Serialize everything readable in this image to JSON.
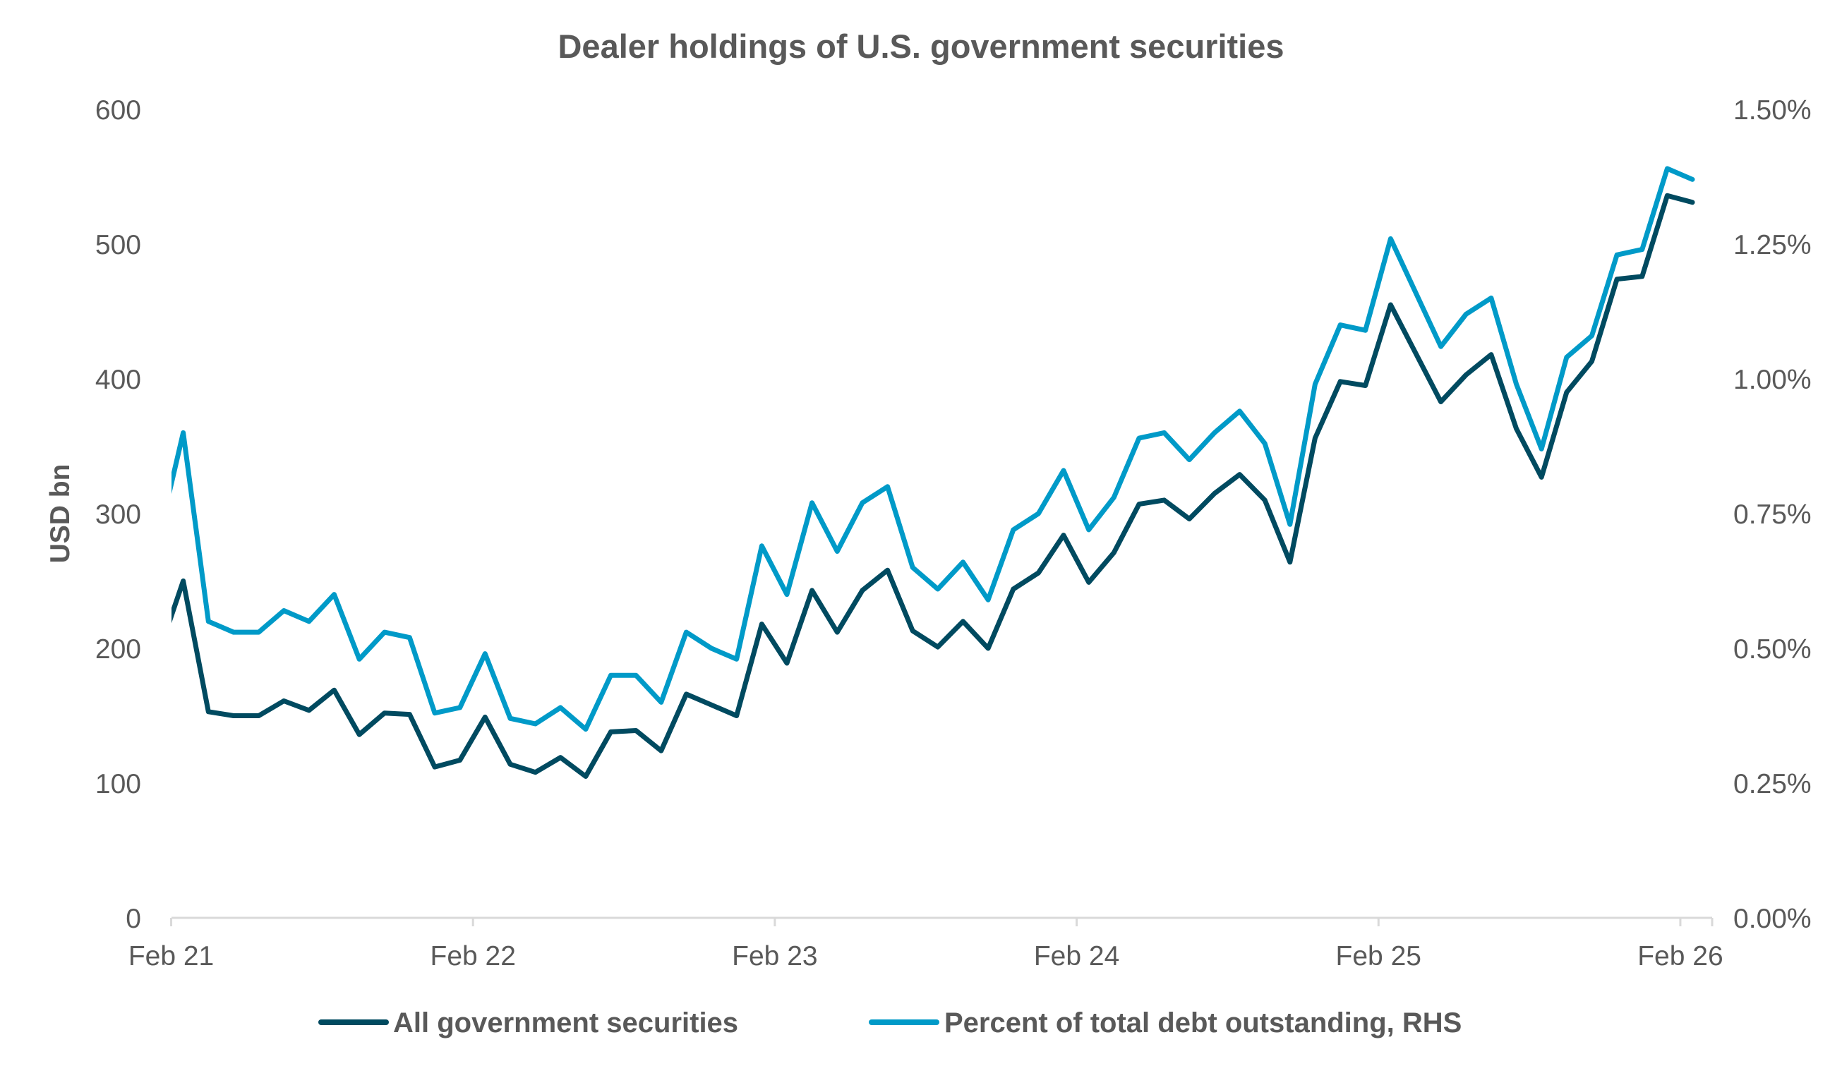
{
  "chart_data": {
    "type": "line",
    "title": "Dealer holdings of U.S. government securities",
    "ylabel": "USD bn",
    "ylim": [
      0,
      600
    ],
    "yticks": [
      "0",
      "100",
      "200",
      "300",
      "400",
      "500",
      "600"
    ],
    "y2lim": [
      0,
      1.5
    ],
    "y2ticks": [
      "0.00%",
      "0.25%",
      "0.50%",
      "0.75%",
      "1.00%",
      "1.25%",
      "1.50%"
    ],
    "xticks": [
      "Feb 21",
      "Feb 22",
      "Feb 23",
      "Feb 24",
      "Feb 25",
      "Feb 26"
    ],
    "x_unit": "monthly observations",
    "grid": false,
    "legend_position": "bottom",
    "colors": {
      "text": "#595959",
      "axis": "#d9d9d9"
    },
    "series": [
      {
        "name": "All government securities",
        "axis": "left",
        "color": "#004a60",
        "values": [
          195,
          250,
          153,
          150,
          150,
          161,
          154,
          169,
          136,
          152,
          151,
          112,
          117,
          149,
          114,
          108,
          119,
          105,
          138,
          139,
          124,
          166,
          158,
          150,
          218,
          189,
          243,
          212,
          243,
          258,
          213,
          201,
          220,
          200,
          244,
          256,
          284,
          249,
          271,
          307,
          310,
          296,
          315,
          329,
          310,
          264,
          356,
          398,
          395,
          455,
          419,
          383,
          403,
          418,
          363,
          327,
          390,
          413,
          474,
          476,
          536,
          531
        ]
      },
      {
        "name": "Percent of total debt outstanding, RHS",
        "axis": "right",
        "color": "#009ac8",
        "values": [
          0.7,
          0.9,
          0.55,
          0.53,
          0.53,
          0.57,
          0.55,
          0.6,
          0.48,
          0.53,
          0.52,
          0.38,
          0.39,
          0.49,
          0.37,
          0.36,
          0.39,
          0.35,
          0.45,
          0.45,
          0.4,
          0.53,
          0.5,
          0.48,
          0.69,
          0.6,
          0.77,
          0.68,
          0.77,
          0.8,
          0.65,
          0.61,
          0.66,
          0.59,
          0.72,
          0.75,
          0.83,
          0.72,
          0.78,
          0.89,
          0.9,
          0.85,
          0.9,
          0.94,
          0.88,
          0.73,
          0.99,
          1.1,
          1.09,
          1.26,
          1.16,
          1.06,
          1.12,
          1.15,
          0.99,
          0.87,
          1.04,
          1.08,
          1.23,
          1.24,
          1.39,
          1.37
        ]
      }
    ]
  }
}
